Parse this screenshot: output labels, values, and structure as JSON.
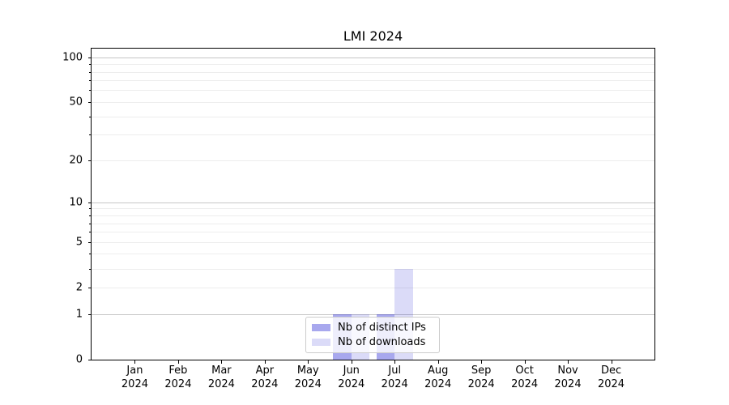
{
  "title": "LMI 2024",
  "colors": {
    "ips_bar": "rgba(0,0,205,0.34)",
    "downloads_bar": "rgba(0,0,205,0.14)",
    "grid_major": "#c6c6c6",
    "grid_minor": "#ededed",
    "spine": "#000000",
    "legend_border": "#cccccc"
  },
  "chart_data": {
    "type": "bar",
    "title": "LMI 2024",
    "categories": [
      "Jan",
      "Feb",
      "Mar",
      "Apr",
      "May",
      "Jun",
      "Jul",
      "Aug",
      "Sep",
      "Oct",
      "Nov",
      "Dec"
    ],
    "year_label": "2024",
    "series": [
      {
        "name": "Nb of distinct IPs",
        "color_key": "ips_bar",
        "values": [
          0,
          0,
          0,
          0,
          0,
          1,
          1,
          0,
          0,
          0,
          0,
          0
        ]
      },
      {
        "name": "Nb of downloads",
        "color_key": "downloads_bar",
        "values": [
          0,
          0,
          0,
          0,
          0,
          1,
          3,
          0,
          0,
          0,
          0,
          0
        ]
      }
    ],
    "yscale": "log1p",
    "ylim": [
      0,
      115
    ],
    "yticks_labeled": [
      0,
      1,
      2,
      5,
      10,
      20,
      50,
      100
    ],
    "yticks_decade": [
      1,
      10,
      100
    ],
    "yticks_minor": [
      3,
      4,
      6,
      7,
      8,
      9,
      30,
      40,
      60,
      70,
      80,
      90
    ],
    "grid": true,
    "legend_position": "lower center"
  }
}
